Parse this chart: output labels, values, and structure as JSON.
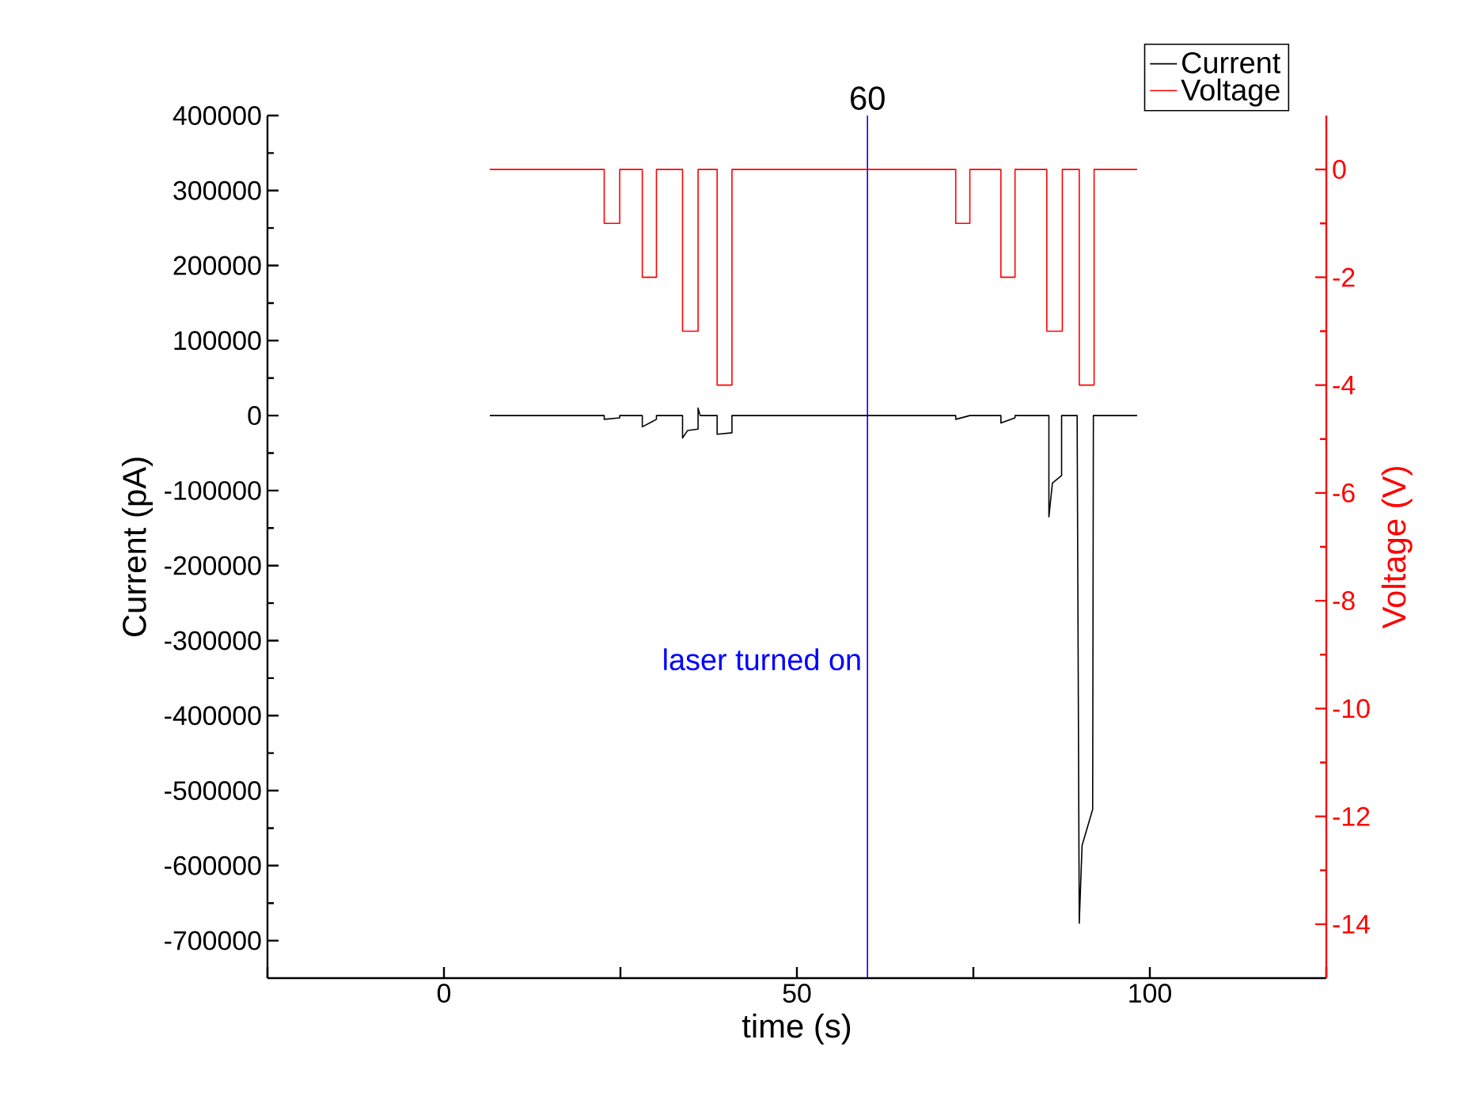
{
  "chart_data": {
    "type": "line",
    "xlabel": "time (s)",
    "ylabel": "Current (pA)",
    "y2label": "Voltage (V)",
    "xlim": [
      -25,
      125
    ],
    "xticks": [
      {
        "value": -25,
        "label": null
      },
      0,
      {
        "value": 25,
        "label": null
      },
      50,
      {
        "value": 75,
        "label": null
      },
      100,
      {
        "value": 125,
        "label": null
      }
    ],
    "ylim": [
      -750000,
      400000
    ],
    "yticks": [
      -700000,
      -600000,
      -500000,
      -400000,
      -300000,
      -200000,
      -100000,
      0,
      100000,
      200000,
      300000,
      400000
    ],
    "y2lim": [
      -15,
      1
    ],
    "y2ticks": [
      -14,
      -12,
      -10,
      -8,
      -6,
      -4,
      -2,
      0
    ],
    "legend": "top right",
    "line_style": "solid",
    "marker": "none",
    "grid": false,
    "series": [
      {
        "name": "Current",
        "color": "#000000",
        "x": [
          6.5,
          22.7,
          22.7,
          24.9,
          24.9,
          28.1,
          28.1,
          29.5,
          30.1,
          30.1,
          33.8,
          33.8,
          34.5,
          36.0,
          36.0,
          36.3,
          38.7,
          38.7,
          40.8,
          40.8,
          72.5,
          72.5,
          74.5,
          78.9,
          78.9,
          80.9,
          80.9,
          85.7,
          85.7,
          86.2,
          87.5,
          87.5,
          89.7,
          90.0,
          90.4,
          91.9,
          92.0,
          98.2
        ],
        "values": [
          0,
          0,
          -5000,
          -3000,
          0,
          0,
          -15000,
          -8000,
          -5000,
          0,
          0,
          -30000,
          -20000,
          -18000,
          10000,
          0,
          0,
          -25000,
          -23000,
          0,
          0,
          -5000,
          0,
          0,
          -10000,
          -3000,
          0,
          0,
          -135000,
          -90000,
          -80000,
          0,
          0,
          -677000,
          -573000,
          -525000,
          0,
          0
        ]
      },
      {
        "name": "Voltage",
        "color": "#ff0000",
        "axis": "y2",
        "x": [
          6.5,
          22.7,
          22.7,
          24.9,
          24.9,
          28.1,
          28.1,
          30.1,
          30.1,
          33.8,
          33.8,
          36.0,
          36.0,
          38.7,
          38.7,
          40.8,
          40.8,
          72.5,
          72.5,
          74.5,
          74.5,
          78.9,
          78.9,
          80.9,
          80.9,
          85.4,
          85.4,
          87.6,
          87.6,
          90.0,
          90.0,
          92.1,
          92.1,
          98.2
        ],
        "values": [
          0,
          0,
          -1,
          -1,
          0,
          0,
          -2,
          -2,
          0,
          0,
          -3,
          -3,
          0,
          0,
          -4,
          -4,
          0,
          0,
          -1,
          -1,
          0,
          0,
          -2,
          -2,
          0,
          0,
          -3,
          -3,
          0,
          0,
          -4,
          -4,
          0,
          0
        ]
      }
    ],
    "ref_lines": [
      {
        "axis": "x",
        "value": 60,
        "label": "60",
        "color": "#0000ff"
      }
    ],
    "annotations": [
      {
        "text": "laser turned on",
        "x": 60,
        "y": -325000
      }
    ]
  }
}
